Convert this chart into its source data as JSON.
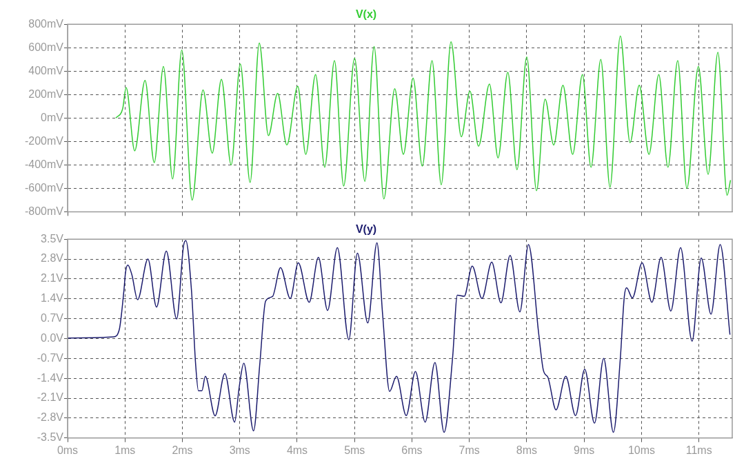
{
  "chart_data": [
    {
      "type": "line",
      "title": "V(x)",
      "xlim": [
        0,
        11.58
      ],
      "ylim": [
        -800,
        800
      ],
      "xticks": [
        {
          "value": 0,
          "label": null
        },
        {
          "value": 1,
          "label": null
        },
        {
          "value": 2,
          "label": null
        },
        {
          "value": 3,
          "label": null
        },
        {
          "value": 4,
          "label": null
        },
        {
          "value": 5,
          "label": null
        },
        {
          "value": 6,
          "label": null
        },
        {
          "value": 7,
          "label": null
        },
        {
          "value": 8,
          "label": null
        },
        {
          "value": 9,
          "label": null
        },
        {
          "value": 10,
          "label": null
        },
        {
          "value": 11,
          "label": null
        }
      ],
      "yticks": [
        {
          "value": 800,
          "label": "800mV"
        },
        {
          "value": 600,
          "label": "600mV"
        },
        {
          "value": 400,
          "label": "400mV"
        },
        {
          "value": 200,
          "label": "200mV"
        },
        {
          "value": 0,
          "label": "0mV"
        },
        {
          "value": -200,
          "label": "-200mV"
        },
        {
          "value": -400,
          "label": "-400mV"
        },
        {
          "value": -600,
          "label": "-600mV"
        },
        {
          "value": -800,
          "label": "-800mV"
        }
      ],
      "tick_labels": "y",
      "grid": true,
      "legend": false,
      "marker": "none",
      "series": [
        {
          "color": "#33cc33",
          "x": [
            0.84,
            0.96,
            1.02,
            1.17,
            1.35,
            1.51,
            1.67,
            1.83,
            1.99,
            2.17,
            2.36,
            2.52,
            2.68,
            2.85,
            3.01,
            3.18,
            3.34,
            3.5,
            3.66,
            3.82,
            4.01,
            4.15,
            4.32,
            4.48,
            4.65,
            4.81,
            5.0,
            5.18,
            5.34,
            5.51,
            5.7,
            5.85,
            6.02,
            6.18,
            6.35,
            6.51,
            6.68,
            6.86,
            7.01,
            7.16,
            7.35,
            7.5,
            7.67,
            7.83,
            8.0,
            8.17,
            8.32,
            8.47,
            8.63,
            8.8,
            8.97,
            9.12,
            9.29,
            9.45,
            9.63,
            9.8,
            9.96,
            10.13,
            10.3,
            10.46,
            10.63,
            10.79,
            10.99,
            11.16,
            11.33,
            11.49,
            11.55
          ],
          "values": [
            0,
            80,
            260,
            -280,
            320,
            -380,
            440,
            -520,
            580,
            -700,
            240,
            -300,
            330,
            -400,
            460,
            -550,
            640,
            -150,
            210,
            -230,
            270,
            -310,
            370,
            -420,
            490,
            -580,
            510,
            -540,
            610,
            -690,
            250,
            -310,
            340,
            -410,
            490,
            -570,
            650,
            -160,
            230,
            -240,
            290,
            -340,
            390,
            -440,
            520,
            -620,
            160,
            -230,
            280,
            -310,
            370,
            -420,
            500,
            -590,
            700,
            -210,
            280,
            -310,
            370,
            -420,
            490,
            -600,
            440,
            -480,
            560,
            -660,
            -530
          ]
        }
      ]
    },
    {
      "type": "line",
      "title": "V(y)",
      "xlim": [
        0,
        11.58
      ],
      "ylim": [
        -3.5,
        3.5
      ],
      "xticks": [
        {
          "value": 0,
          "label": "0ms"
        },
        {
          "value": 1,
          "label": "1ms"
        },
        {
          "value": 2,
          "label": "2ms"
        },
        {
          "value": 3,
          "label": "3ms"
        },
        {
          "value": 4,
          "label": "4ms"
        },
        {
          "value": 5,
          "label": "5ms"
        },
        {
          "value": 6,
          "label": "6ms"
        },
        {
          "value": 7,
          "label": "7ms"
        },
        {
          "value": 8,
          "label": "8ms"
        },
        {
          "value": 9,
          "label": "9ms"
        },
        {
          "value": 10,
          "label": "10ms"
        },
        {
          "value": 11,
          "label": "11ms"
        }
      ],
      "yticks": [
        {
          "value": 3.5,
          "label": "3.5V"
        },
        {
          "value": 2.8,
          "label": "2.8V"
        },
        {
          "value": 2.1,
          "label": "2.1V"
        },
        {
          "value": 1.4,
          "label": "1.4V"
        },
        {
          "value": 0.7,
          "label": "0.7V"
        },
        {
          "value": 0,
          "label": "0.0V"
        },
        {
          "value": -0.7,
          "label": "-0.7V"
        },
        {
          "value": -1.4,
          "label": "-1.4V"
        },
        {
          "value": -2.1,
          "label": "-2.1V"
        },
        {
          "value": -2.8,
          "label": "-2.8V"
        },
        {
          "value": -3.5,
          "label": "-3.5V"
        }
      ],
      "grid": true,
      "legend": false,
      "marker": "none",
      "series": [
        {
          "color": "#1c1c6e",
          "x": [
            0,
            0.8,
            0.9,
            0.98,
            1.01,
            1.05,
            1.12,
            1.22,
            1.4,
            1.55,
            1.72,
            1.9,
            2.02,
            2.06,
            2.16,
            2.23,
            2.28,
            2.34,
            2.4,
            2.57,
            2.74,
            2.91,
            2.99,
            3.07,
            3.24,
            3.35,
            3.45,
            3.57,
            3.71,
            3.88,
            4.02,
            4.21,
            4.37,
            4.53,
            4.7,
            4.9,
            5.05,
            5.23,
            5.39,
            5.49,
            5.61,
            5.73,
            5.9,
            6.06,
            6.23,
            6.4,
            6.56,
            6.71,
            6.79,
            6.91,
            7.05,
            7.22,
            7.39,
            7.55,
            7.71,
            7.88,
            8.03,
            8.21,
            8.29,
            8.37,
            8.51,
            8.68,
            8.85,
            9.01,
            9.18,
            9.34,
            9.51,
            9.63,
            9.7,
            9.74,
            9.84,
            10.01,
            10.18,
            10.34,
            10.51,
            10.68,
            10.88,
            11.04,
            11.21,
            11.37,
            11.54
          ],
          "values": [
            0.02,
            0.06,
            0.31,
            1.66,
            2.34,
            2.59,
            2.25,
            1.37,
            2.8,
            1.11,
            3.08,
            0.69,
            3.26,
            3.45,
            1.66,
            -0.87,
            -1.84,
            -1.84,
            -1.33,
            -2.72,
            -1.23,
            -2.94,
            -1.71,
            -0.87,
            -3.25,
            -0.87,
            1.32,
            1.48,
            2.5,
            1.41,
            2.67,
            1.28,
            2.86,
            0.99,
            3.2,
            -0.04,
            3.01,
            0.55,
            3.37,
            0.82,
            -1.86,
            -1.33,
            -2.71,
            -1.16,
            -2.94,
            -0.84,
            -3.3,
            -0.62,
            1.53,
            1.49,
            2.55,
            1.41,
            2.69,
            1.26,
            2.93,
            0.94,
            3.31,
            0.14,
            -1.12,
            -1.37,
            -2.51,
            -1.33,
            -2.71,
            -1.08,
            -2.98,
            -0.7,
            -3.3,
            -0.7,
            1.49,
            1.79,
            1.43,
            2.67,
            1.28,
            2.86,
            0.97,
            3.2,
            -0.09,
            2.84,
            0.86,
            3.31,
            0.14
          ]
        }
      ]
    }
  ]
}
